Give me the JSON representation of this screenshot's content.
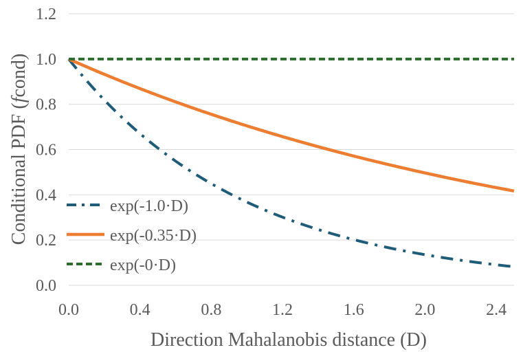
{
  "chart_data": {
    "type": "line",
    "title": "",
    "xlabel": "Direction Mahalanobis distance (D)",
    "ylabel_prefix": "Conditional PDF (",
    "ylabel_italic": "f",
    "ylabel_suffix": "cond)",
    "xlim": [
      0,
      2.5
    ],
    "ylim": [
      0,
      1.2
    ],
    "x_ticks": [
      "0.0",
      "0.4",
      "0.8",
      "1.2",
      "1.6",
      "2.0",
      "2.4"
    ],
    "y_ticks": [
      "0.0",
      "0.2",
      "0.4",
      "0.6",
      "0.8",
      "1.0",
      "1.2"
    ],
    "grid": true,
    "legend_position": "lower-left",
    "x": [
      0,
      0.1,
      0.2,
      0.3,
      0.4,
      0.5,
      0.6,
      0.7,
      0.8,
      0.9,
      1.0,
      1.1,
      1.2,
      1.3,
      1.4,
      1.5,
      1.6,
      1.7,
      1.8,
      1.9,
      2.0,
      2.1,
      2.2,
      2.3,
      2.4,
      2.5
    ],
    "series": [
      {
        "name": "exp(-1.0·D)",
        "rate": 1.0,
        "color": "#1f5c7a",
        "style": "dash-dot",
        "values": [
          1.0,
          0.905,
          0.819,
          0.741,
          0.67,
          0.607,
          0.549,
          0.497,
          0.449,
          0.407,
          0.368,
          0.333,
          0.301,
          0.273,
          0.247,
          0.223,
          0.202,
          0.183,
          0.165,
          0.15,
          0.135,
          0.122,
          0.111,
          0.1,
          0.091,
          0.082
        ]
      },
      {
        "name": "exp(-0.35·D)",
        "rate": 0.35,
        "color": "#ed7d31",
        "style": "solid",
        "values": [
          1.0,
          0.966,
          0.932,
          0.9,
          0.869,
          0.839,
          0.811,
          0.783,
          0.756,
          0.73,
          0.705,
          0.68,
          0.657,
          0.634,
          0.613,
          0.592,
          0.571,
          0.552,
          0.533,
          0.514,
          0.497,
          0.479,
          0.463,
          0.447,
          0.432,
          0.417
        ]
      },
      {
        "name": "exp(-0·D)",
        "rate": 0,
        "color": "#2e6b2e",
        "style": "dashed",
        "values": [
          1,
          1,
          1,
          1,
          1,
          1,
          1,
          1,
          1,
          1,
          1,
          1,
          1,
          1,
          1,
          1,
          1,
          1,
          1,
          1,
          1,
          1,
          1,
          1,
          1,
          1
        ]
      }
    ]
  }
}
